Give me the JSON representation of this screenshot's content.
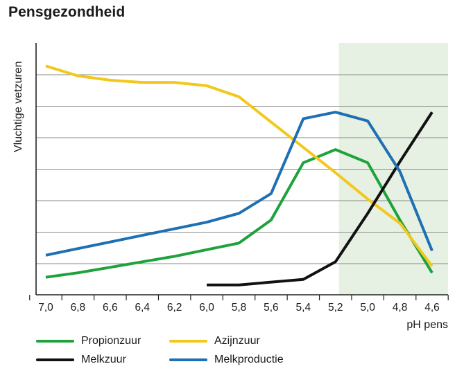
{
  "title": "Pensgezondheid",
  "chart_data": {
    "type": "line",
    "title": "Pensgezondheid",
    "ylabel": "Vluchtige vetzuren",
    "xlabel": "pH pens",
    "categories": [
      "7,0",
      "6,8",
      "6,6",
      "6,4",
      "6,2",
      "6,0",
      "5,8",
      "5,6",
      "5,4",
      "5,2",
      "5,0",
      "4,8",
      "4,6"
    ],
    "x": [
      7.0,
      6.8,
      6.6,
      6.4,
      6.2,
      6.0,
      5.8,
      5.6,
      5.4,
      5.2,
      5.0,
      4.8,
      4.6
    ],
    "xlim": [
      7.0,
      4.6
    ],
    "ylim": [
      0,
      10
    ],
    "highlight_x_range": [
      5.2,
      4.45
    ],
    "grid": true,
    "series": [
      {
        "name": "Propionzuur",
        "color": "#1ea23c",
        "x": [
          7.0,
          6.8,
          6.6,
          6.4,
          6.2,
          6.0,
          5.8,
          5.6,
          5.4,
          5.2,
          5.0,
          4.8,
          4.6
        ],
        "values": [
          0.8,
          1.0,
          1.25,
          1.5,
          1.75,
          2.05,
          2.35,
          3.4,
          6.0,
          6.6,
          6.0,
          3.4,
          1.0
        ]
      },
      {
        "name": "Azijnzuur",
        "color": "#f2c81c",
        "x": [
          7.0,
          6.8,
          6.6,
          6.4,
          6.2,
          6.0,
          5.8,
          5.6,
          5.4,
          5.2,
          5.0,
          4.8,
          4.6
        ],
        "values": [
          10.4,
          9.95,
          9.75,
          9.65,
          9.65,
          9.5,
          9.0,
          7.85,
          6.7,
          5.55,
          4.35,
          3.25,
          1.3
        ]
      },
      {
        "name": "Melkzuur",
        "color": "#111111",
        "x": [
          6.0,
          5.8,
          5.4,
          5.2,
          5.0,
          4.8,
          4.6
        ],
        "values": [
          0.45,
          0.45,
          0.7,
          1.5,
          3.7,
          6.05,
          8.3
        ]
      },
      {
        "name": "Melkproductie",
        "color": "#1e6fb3",
        "x": [
          7.0,
          6.8,
          6.6,
          6.4,
          6.2,
          6.0,
          5.8,
          5.6,
          5.4,
          5.2,
          5.0,
          4.8,
          4.6
        ],
        "values": [
          1.8,
          2.1,
          2.4,
          2.7,
          3.0,
          3.3,
          3.7,
          4.6,
          8.0,
          8.3,
          7.9,
          5.6,
          2.0
        ]
      }
    ]
  }
}
